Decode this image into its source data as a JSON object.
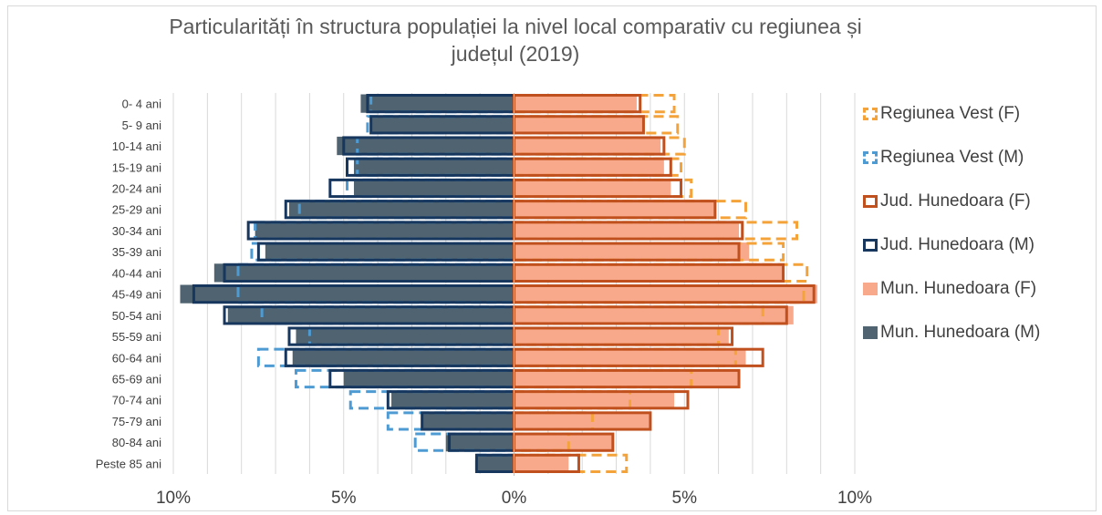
{
  "chart_data": {
    "type": "bar",
    "orientation": "horizontal",
    "title": "Particularități în structura populației la nivel local comparativ cu regiunea și județul (2019)",
    "title_lines": [
      "Particularități în structura populației la nivel local comparativ cu regiunea și",
      "județul (2019)"
    ],
    "categories": [
      "0- 4 ani",
      "5- 9 ani",
      "10-14 ani",
      "15-19 ani",
      "20-24 ani",
      "25-29 ani",
      "30-34 ani",
      "35-39 ani",
      "40-44 ani",
      "45-49 ani",
      "50-54 ani",
      "55-59 ani",
      "60-64 ani",
      "65-69 ani",
      "70-74 ani",
      "75-79 ani",
      "80-84 ani",
      "Peste 85 ani"
    ],
    "xlim": [
      -10,
      10
    ],
    "x_ticks": [
      {
        "value": -10,
        "label": "10%"
      },
      {
        "value": -5,
        "label": "5%"
      },
      {
        "value": 0,
        "label": "0%"
      },
      {
        "value": 5,
        "label": "5%"
      },
      {
        "value": 10,
        "label": "10%"
      }
    ],
    "grid": true,
    "legend_position": "right",
    "series": [
      {
        "name": "Regiunea Vest (F)",
        "side": "right",
        "style": "dashed-outline",
        "color": "#f4a23a",
        "values": [
          4.7,
          4.8,
          5.0,
          4.9,
          5.2,
          6.8,
          8.3,
          7.9,
          8.6,
          8.5,
          7.3,
          6.0,
          6.5,
          5.2,
          3.4,
          2.3,
          1.6,
          3.3
        ]
      },
      {
        "name": "Regiunea Vest (M)",
        "side": "left",
        "style": "dashed-outline",
        "color": "#4e9bd4",
        "values": [
          4.2,
          4.3,
          4.6,
          4.6,
          4.9,
          6.3,
          7.6,
          7.7,
          8.1,
          8.1,
          7.4,
          6.0,
          7.5,
          6.4,
          4.8,
          3.7,
          2.9,
          1.1
        ]
      },
      {
        "name": "Jud. Hunedoara (F)",
        "side": "right",
        "style": "outline",
        "color": "#c0501e",
        "values": [
          3.7,
          3.8,
          4.4,
          4.6,
          4.9,
          5.9,
          6.7,
          6.6,
          7.9,
          8.8,
          8.0,
          6.4,
          7.3,
          6.6,
          5.1,
          4.0,
          2.9,
          1.9
        ]
      },
      {
        "name": "Jud. Hunedoara (M)",
        "side": "left",
        "style": "outline",
        "color": "#17375e",
        "values": [
          4.3,
          4.2,
          5.0,
          4.9,
          5.4,
          6.7,
          7.8,
          7.5,
          8.5,
          9.4,
          8.5,
          6.6,
          6.7,
          5.4,
          3.7,
          2.7,
          1.9,
          1.1
        ]
      },
      {
        "name": "Mun. Hunedoara (F)",
        "side": "right",
        "style": "fill",
        "color": "#f8a98c",
        "values": [
          3.6,
          3.8,
          4.3,
          4.4,
          4.6,
          5.9,
          6.6,
          6.9,
          7.9,
          8.9,
          8.2,
          6.3,
          6.8,
          6.6,
          4.7,
          4.0,
          2.9,
          1.6
        ]
      },
      {
        "name": "Mun. Hunedoara (M)",
        "side": "left",
        "style": "fill",
        "color": "#4f6470",
        "values": [
          4.5,
          4.2,
          5.2,
          4.7,
          4.7,
          6.6,
          7.6,
          7.3,
          8.8,
          9.8,
          8.4,
          6.4,
          6.5,
          5.0,
          3.6,
          2.7,
          2.0,
          1.1
        ]
      }
    ]
  },
  "legend_order": [
    0,
    1,
    2,
    3,
    4,
    5
  ]
}
